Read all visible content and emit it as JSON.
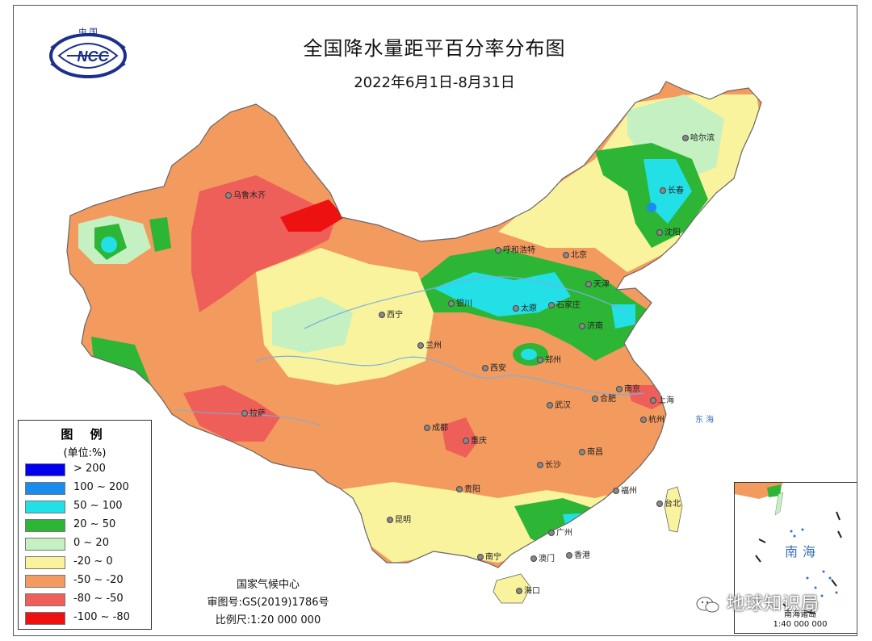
{
  "header": {
    "title": "全国降水量距平百分率分布图",
    "subtitle": "2022年6月1日-8月31日"
  },
  "logo": {
    "top_text": "中 国",
    "mark_text": "NCC",
    "icon": "ncc-logo-icon"
  },
  "legend": {
    "title": "图 例",
    "unit": "(单位:%)",
    "items": [
      {
        "label": "> 200",
        "color": "#0000ee"
      },
      {
        "label": "100 ~ 200",
        "color": "#1a8ceb"
      },
      {
        "label": "50 ~ 100",
        "color": "#22e0e6"
      },
      {
        "label": "20 ~ 50",
        "color": "#2db536"
      },
      {
        "label": "0 ~ 20",
        "color": "#c4f0c2"
      },
      {
        "label": "-20 ~ 0",
        "color": "#f8f39c"
      },
      {
        "label": "-50 ~ -20",
        "color": "#f39a5e"
      },
      {
        "label": "-80 ~ -50",
        "color": "#ef5f5a"
      },
      {
        "label": "-100 ~ -80",
        "color": "#ee1111"
      }
    ]
  },
  "credits": {
    "org": "国家气候中心",
    "approval": "审图号:GS(2019)1786号",
    "scale": "比例尺:1:20 000 000"
  },
  "inset": {
    "title": "南海",
    "islands_label": "南海诸岛",
    "scale": "1:40 000 000"
  },
  "cities": [
    {
      "name": "哈尔滨"
    },
    {
      "name": "长春"
    },
    {
      "name": "沈阳"
    },
    {
      "name": "北京"
    },
    {
      "name": "天津"
    },
    {
      "name": "呼和浩特"
    },
    {
      "name": "石家庄"
    },
    {
      "name": "太原"
    },
    {
      "name": "济南"
    },
    {
      "name": "银川"
    },
    {
      "name": "西宁"
    },
    {
      "name": "兰州"
    },
    {
      "name": "西安"
    },
    {
      "name": "郑州"
    },
    {
      "name": "乌鲁木齐"
    },
    {
      "name": "拉萨"
    },
    {
      "name": "成都"
    },
    {
      "name": "重庆"
    },
    {
      "name": "武汉"
    },
    {
      "name": "合肥"
    },
    {
      "name": "南京"
    },
    {
      "name": "上海"
    },
    {
      "name": "杭州"
    },
    {
      "name": "长沙"
    },
    {
      "name": "南昌"
    },
    {
      "name": "福州"
    },
    {
      "name": "台北"
    },
    {
      "name": "贵阳"
    },
    {
      "name": "昆明"
    },
    {
      "name": "南宁"
    },
    {
      "name": "广州"
    },
    {
      "name": "澳门"
    },
    {
      "name": "香港"
    },
    {
      "name": "海口"
    }
  ],
  "seas": {
    "east_sea": "东  海"
  },
  "watermark": {
    "text": "地球知识局",
    "icon": "wechat-icon"
  },
  "colors": {
    "border": "#555555",
    "river": "#7aaee0"
  }
}
